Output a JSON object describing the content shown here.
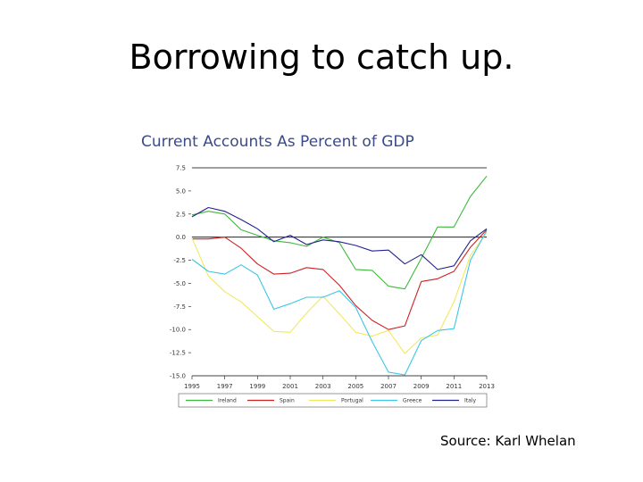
{
  "slide": {
    "title": "Borrowing to catch up.",
    "source": "Source:  Karl Whelan"
  },
  "chart_data": {
    "type": "line",
    "title": "Current Accounts As Percent of GDP",
    "xlabel": "",
    "ylabel": "",
    "ylim": [
      -15,
      7.5
    ],
    "xlim": [
      1995,
      2013
    ],
    "yticks": [
      "7.5",
      "5.0",
      "2.5",
      "0.0",
      "-2.5",
      "-5.0",
      "-7.5",
      "-10.0",
      "-12.5",
      "-15.0"
    ],
    "ytick_values": [
      7.5,
      5.0,
      2.5,
      0.0,
      -2.5,
      -5.0,
      -7.5,
      -10.0,
      -12.5,
      -15.0
    ],
    "xticks": [
      "1995",
      "1997",
      "1999",
      "2001",
      "2003",
      "2005",
      "2007",
      "2009",
      "2011",
      "2013"
    ],
    "xtick_values": [
      1995,
      1997,
      1999,
      2001,
      2003,
      2005,
      2007,
      2009,
      2011,
      2013
    ],
    "legend_position": "bottom",
    "series": [
      {
        "name": "Ireland",
        "color": "#3cb83c",
        "points": [
          [
            1995,
            2.4
          ],
          [
            1996,
            2.8
          ],
          [
            1997,
            2.5
          ],
          [
            1998,
            0.8
          ],
          [
            1999,
            0.2
          ],
          [
            2000,
            -0.4
          ],
          [
            2001,
            -0.6
          ],
          [
            2002,
            -1.0
          ],
          [
            2003,
            0.0
          ],
          [
            2004,
            -0.6
          ],
          [
            2005,
            -3.5
          ],
          [
            2006,
            -3.6
          ],
          [
            2007,
            -5.3
          ],
          [
            2008,
            -5.6
          ],
          [
            2009,
            -2.3
          ],
          [
            2010,
            1.1
          ],
          [
            2011,
            1.1
          ],
          [
            2012,
            4.4
          ],
          [
            2013,
            6.6
          ]
        ]
      },
      {
        "name": "Spain",
        "color": "#cc2222",
        "points": [
          [
            1995,
            -0.2
          ],
          [
            1996,
            -0.2
          ],
          [
            1997,
            0.0
          ],
          [
            1998,
            -1.2
          ],
          [
            1999,
            -2.9
          ],
          [
            2000,
            -4.0
          ],
          [
            2001,
            -3.9
          ],
          [
            2002,
            -3.3
          ],
          [
            2003,
            -3.5
          ],
          [
            2004,
            -5.2
          ],
          [
            2005,
            -7.4
          ],
          [
            2006,
            -9.0
          ],
          [
            2007,
            -10.0
          ],
          [
            2008,
            -9.6
          ],
          [
            2009,
            -4.8
          ],
          [
            2010,
            -4.5
          ],
          [
            2011,
            -3.7
          ],
          [
            2012,
            -1.1
          ],
          [
            2013,
            0.8
          ]
        ]
      },
      {
        "name": "Portugal",
        "color": "#f2e860",
        "points": [
          [
            1995,
            -0.1
          ],
          [
            1996,
            -4.2
          ],
          [
            1997,
            -5.9
          ],
          [
            1998,
            -7.0
          ],
          [
            1999,
            -8.6
          ],
          [
            2000,
            -10.2
          ],
          [
            2001,
            -10.3
          ],
          [
            2002,
            -8.2
          ],
          [
            2003,
            -6.4
          ],
          [
            2004,
            -8.3
          ],
          [
            2005,
            -10.3
          ],
          [
            2006,
            -10.7
          ],
          [
            2007,
            -10.1
          ],
          [
            2008,
            -12.6
          ],
          [
            2009,
            -10.9
          ],
          [
            2010,
            -10.6
          ],
          [
            2011,
            -7.0
          ],
          [
            2012,
            -2.0
          ],
          [
            2013,
            0.5
          ]
        ]
      },
      {
        "name": "Greece",
        "color": "#3dc6e6",
        "points": [
          [
            1995,
            -2.4
          ],
          [
            1996,
            -3.7
          ],
          [
            1997,
            -4.0
          ],
          [
            1998,
            -3.0
          ],
          [
            1999,
            -4.1
          ],
          [
            2000,
            -7.8
          ],
          [
            2001,
            -7.2
          ],
          [
            2002,
            -6.5
          ],
          [
            2003,
            -6.5
          ],
          [
            2004,
            -5.8
          ],
          [
            2005,
            -7.6
          ],
          [
            2006,
            -11.3
          ],
          [
            2007,
            -14.6
          ],
          [
            2008,
            -14.9
          ],
          [
            2009,
            -11.2
          ],
          [
            2010,
            -10.1
          ],
          [
            2011,
            -9.9
          ],
          [
            2012,
            -2.5
          ],
          [
            2013,
            0.7
          ]
        ]
      },
      {
        "name": "Italy",
        "color": "#23238e",
        "points": [
          [
            1995,
            2.2
          ],
          [
            1996,
            3.2
          ],
          [
            1997,
            2.8
          ],
          [
            1998,
            1.9
          ],
          [
            1999,
            0.9
          ],
          [
            2000,
            -0.5
          ],
          [
            2001,
            0.2
          ],
          [
            2002,
            -0.8
          ],
          [
            2003,
            -0.3
          ],
          [
            2004,
            -0.5
          ],
          [
            2005,
            -0.9
          ],
          [
            2006,
            -1.5
          ],
          [
            2007,
            -1.4
          ],
          [
            2008,
            -2.9
          ],
          [
            2009,
            -1.9
          ],
          [
            2010,
            -3.5
          ],
          [
            2011,
            -3.1
          ],
          [
            2012,
            -0.4
          ],
          [
            2013,
            0.9
          ]
        ]
      }
    ]
  }
}
